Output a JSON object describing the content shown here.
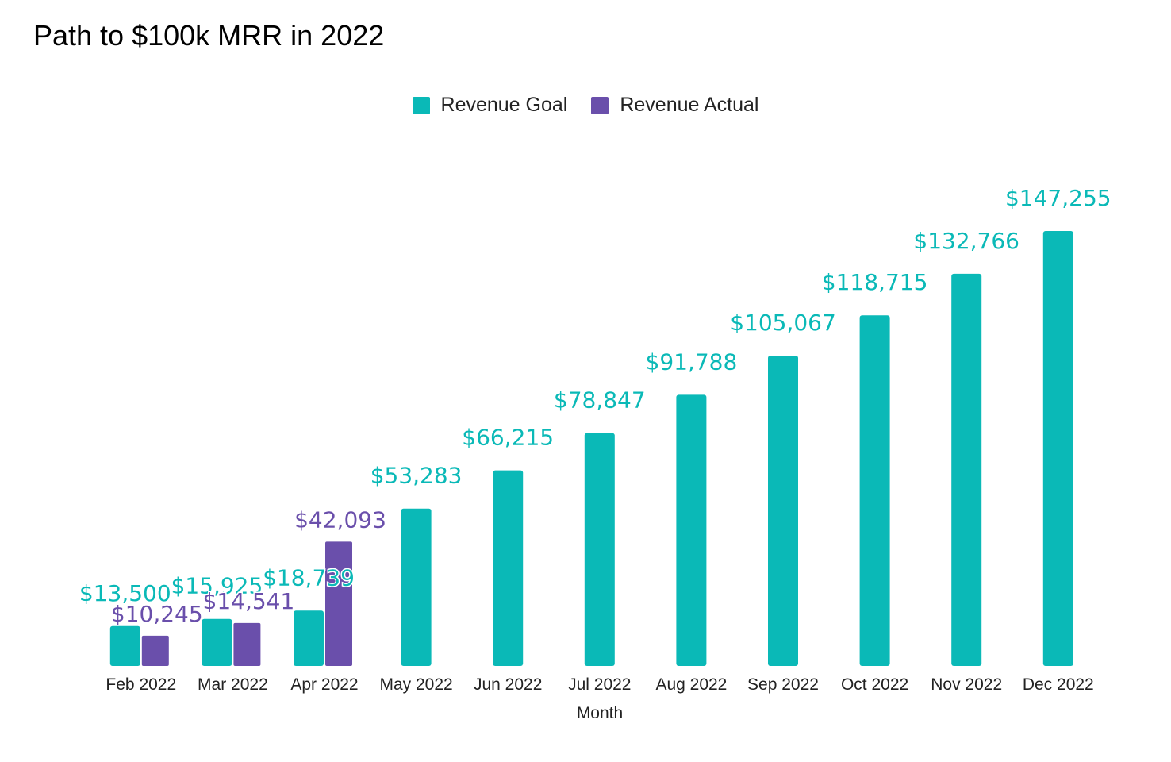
{
  "title": "Path to $100k MRR in 2022",
  "chart_data": {
    "type": "bar",
    "title": "Path to $100k MRR in 2022",
    "xlabel": "Month",
    "ylabel": "",
    "categories": [
      "Feb 2022",
      "Mar 2022",
      "Apr 2022",
      "May 2022",
      "Jun 2022",
      "Jul 2022",
      "Aug 2022",
      "Sep 2022",
      "Oct 2022",
      "Nov 2022",
      "Dec 2022"
    ],
    "series": [
      {
        "name": "Revenue Goal",
        "color": "#0ab9b7",
        "values": [
          13500,
          15925,
          18739,
          53283,
          66215,
          78847,
          91788,
          105067,
          118715,
          132766,
          147255
        ],
        "labels": [
          "$13,500",
          "$15,925",
          "$18,739",
          "$53,283",
          "$66,215",
          "$78,847",
          "$91,788",
          "$105,067",
          "$118,715",
          "$132,766",
          "$147,255"
        ]
      },
      {
        "name": "Revenue Actual",
        "color": "#6a4fab",
        "values": [
          10245,
          14541,
          42093,
          null,
          null,
          null,
          null,
          null,
          null,
          null,
          null
        ],
        "labels": [
          "$10,245",
          "$14,541",
          "$42,093"
        ]
      }
    ],
    "ylim": [
      0,
      150000
    ],
    "grid": false,
    "legend": "top-center"
  }
}
